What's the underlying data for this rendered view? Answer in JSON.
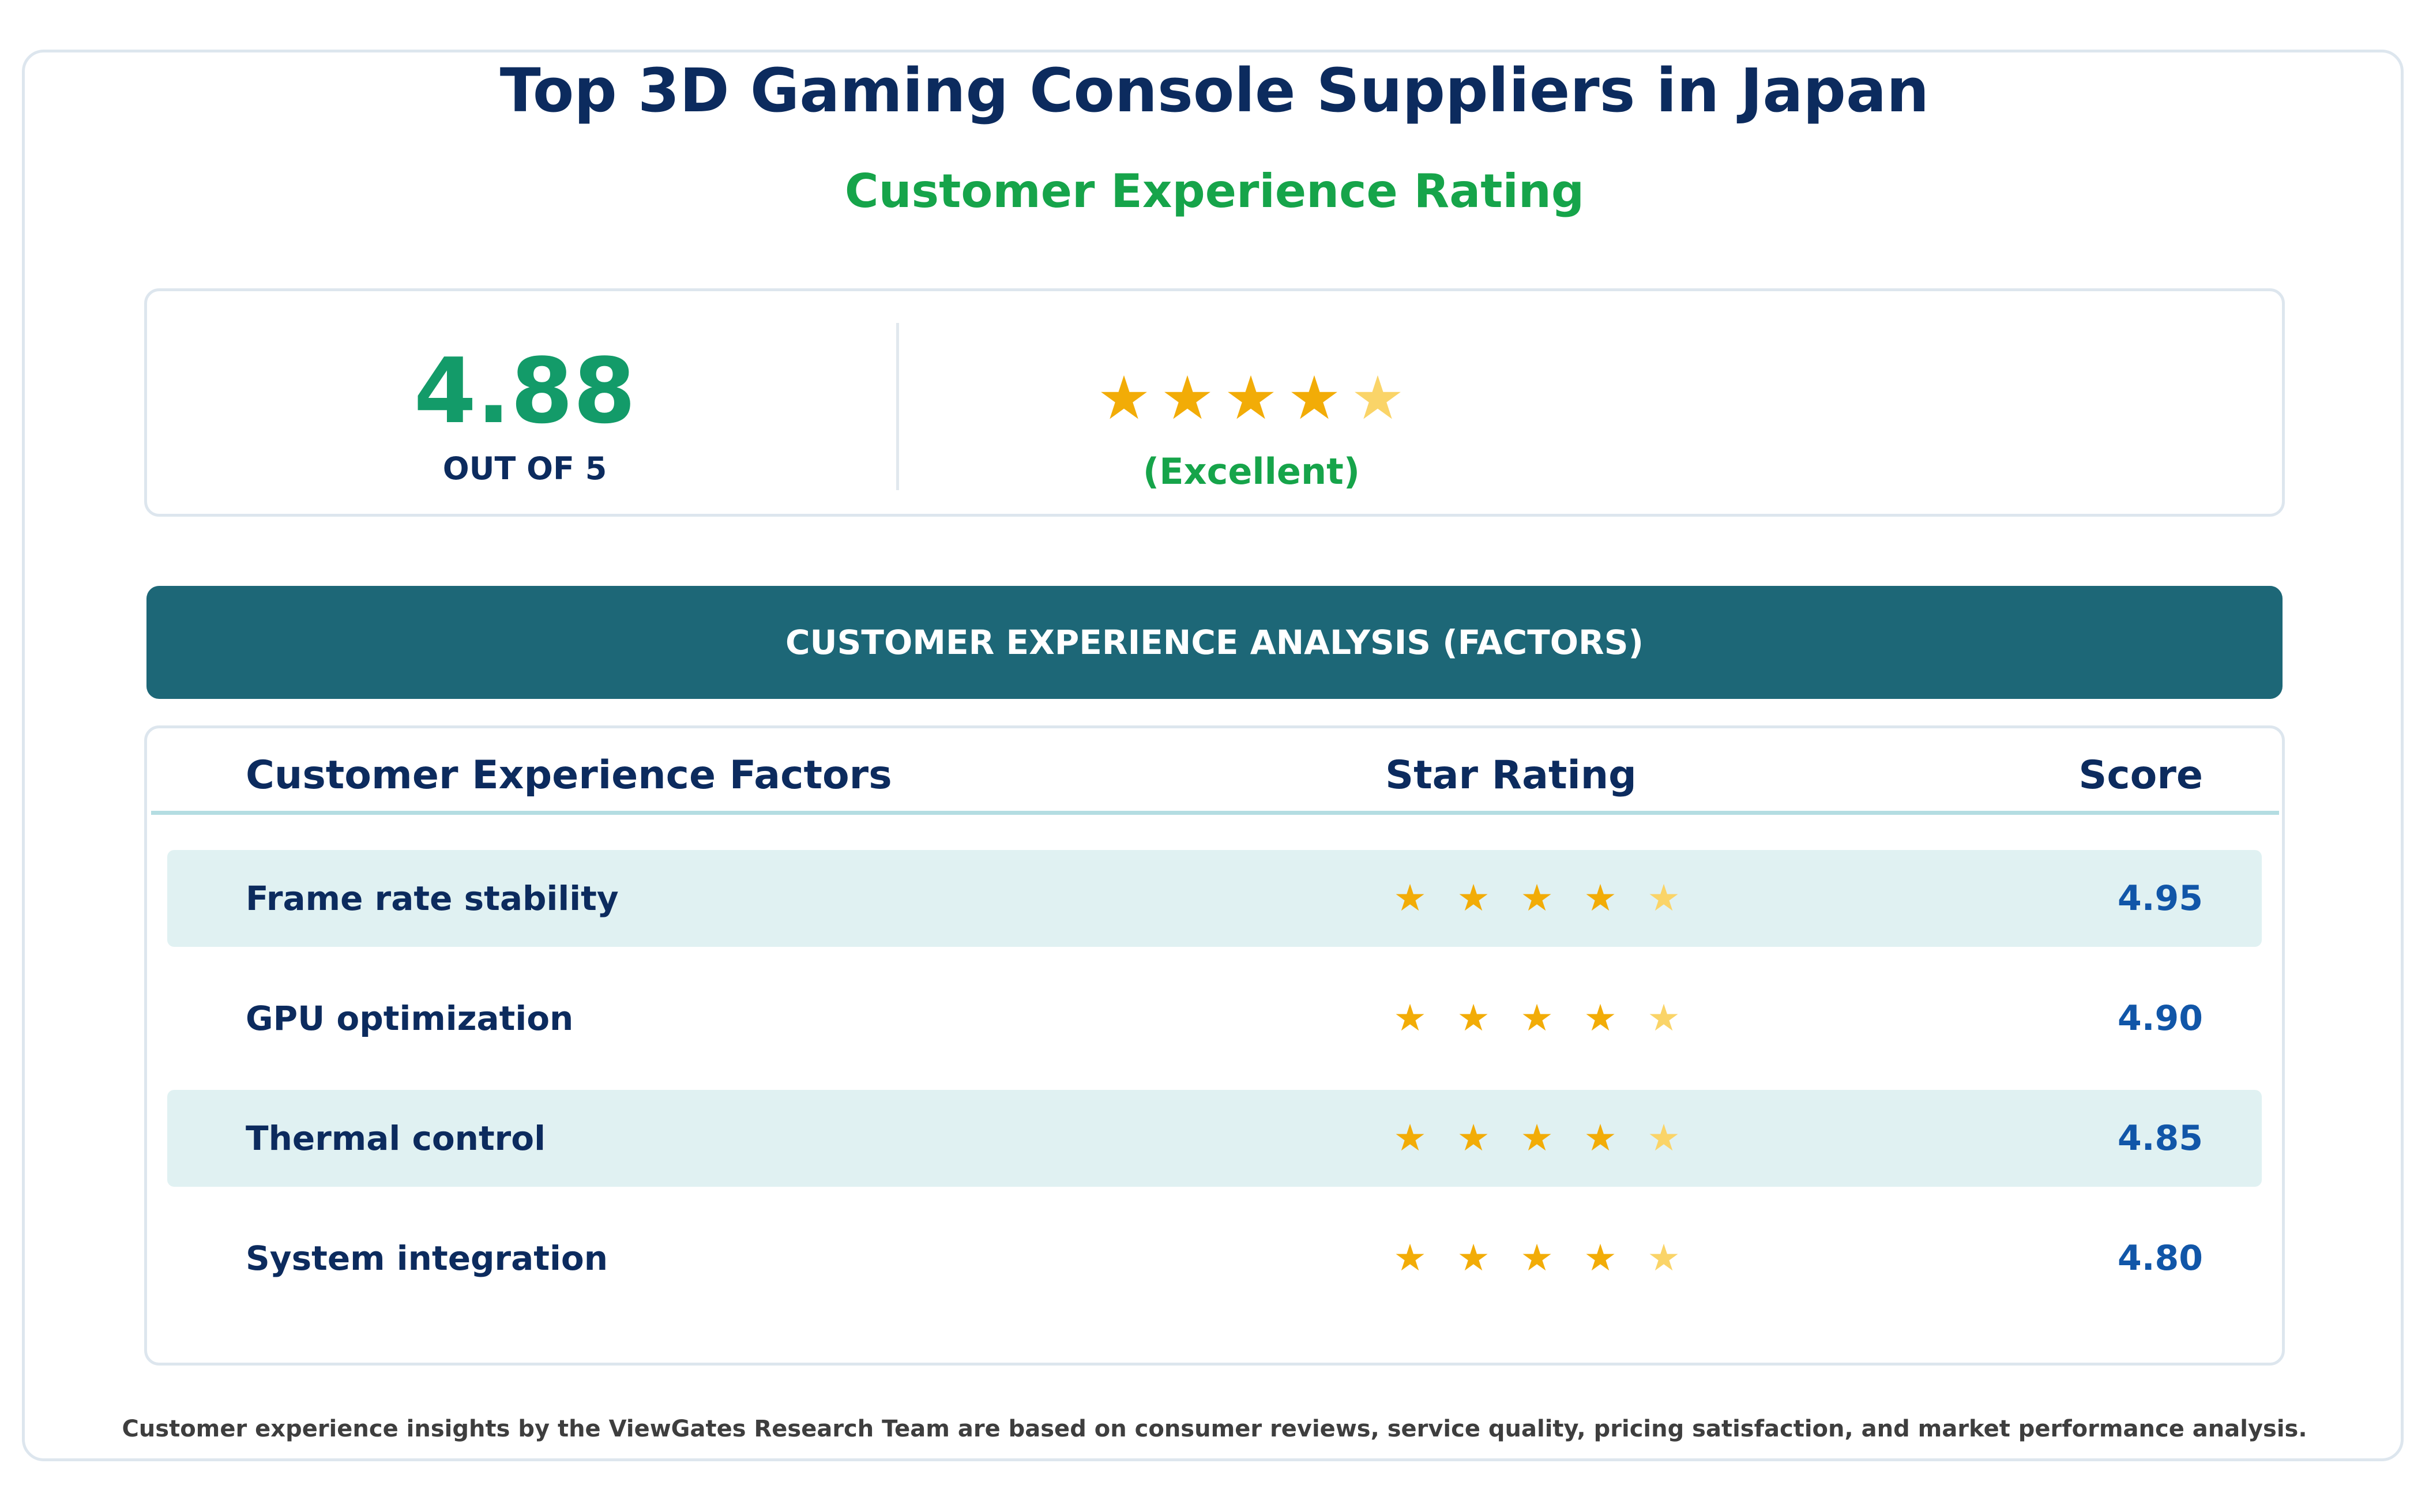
{
  "title": "Top 3D Gaming Console Suppliers in Japan",
  "subtitle": "Customer Experience Rating",
  "summary": {
    "score": "4.88",
    "out_of": "OUT OF 5",
    "stars": [
      "★",
      "★",
      "★",
      "★",
      "★"
    ],
    "star_value": 4.88,
    "label": "(Excellent)"
  },
  "banner": "CUSTOMER EXPERIENCE ANALYSIS (FACTORS)",
  "table": {
    "headers": {
      "factor": "Customer Experience Factors",
      "stars": "Star Rating",
      "score": "Score"
    },
    "rows": [
      {
        "factor": "Frame rate stability",
        "stars": [
          "★",
          "★",
          "★",
          "★",
          "★"
        ],
        "score": "4.95"
      },
      {
        "factor": "GPU optimization",
        "stars": [
          "★",
          "★",
          "★",
          "★",
          "★"
        ],
        "score": "4.90"
      },
      {
        "factor": "Thermal control",
        "stars": [
          "★",
          "★",
          "★",
          "★",
          "★"
        ],
        "score": "4.85"
      },
      {
        "factor": "System integration",
        "stars": [
          "★",
          "★",
          "★",
          "★",
          "★"
        ],
        "score": "4.80"
      }
    ]
  },
  "footnote": "Customer experience insights by the ViewGates Research Team are based on consumer reviews, service quality, pricing satisfaction, and market performance analysis.",
  "colors": {
    "title": "#0c2b5e",
    "accent_green": "#16a44a",
    "score_green": "#139b69",
    "star_full": "#f2ac07",
    "star_partial": "#fad468",
    "banner": "#1d6777",
    "row_shade": "#e0f1f2",
    "score_blue": "#1156a8"
  }
}
